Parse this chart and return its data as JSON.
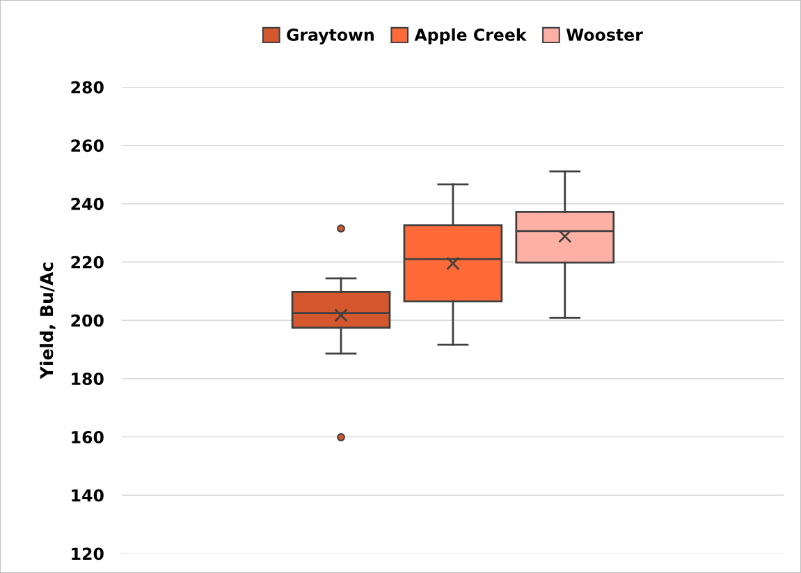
{
  "chart_data": {
    "type": "box",
    "ylabel": "Yield, Bu/Ac",
    "categories": [
      null
    ],
    "series": [
      {
        "name": "Graytown",
        "color": "#d4572e",
        "boxes": [
          {
            "low": 188.6,
            "q1": 197.5,
            "median": 202.5,
            "q3": 209.7,
            "high": 214.4,
            "mean": 201.7,
            "outliers": [
              231.5,
              159.9
            ]
          }
        ]
      },
      {
        "name": "Apple Creek",
        "color": "#ff6a39",
        "boxes": [
          {
            "low": 191.6,
            "q1": 206.5,
            "median": 221.0,
            "q3": 232.6,
            "high": 246.6,
            "mean": 219.5
          }
        ]
      },
      {
        "name": "Wooster",
        "color": "#ffb0a5",
        "boxes": [
          {
            "low": 200.9,
            "q1": 219.8,
            "median": 230.6,
            "q3": 237.2,
            "high": 251.1,
            "mean": 228.8
          }
        ]
      }
    ],
    "ylim": [
      120,
      280
    ],
    "yticks": [
      120,
      140,
      160,
      180,
      200,
      220,
      240,
      260,
      280
    ],
    "grid": "y",
    "legend": "top",
    "marker": "cross"
  }
}
